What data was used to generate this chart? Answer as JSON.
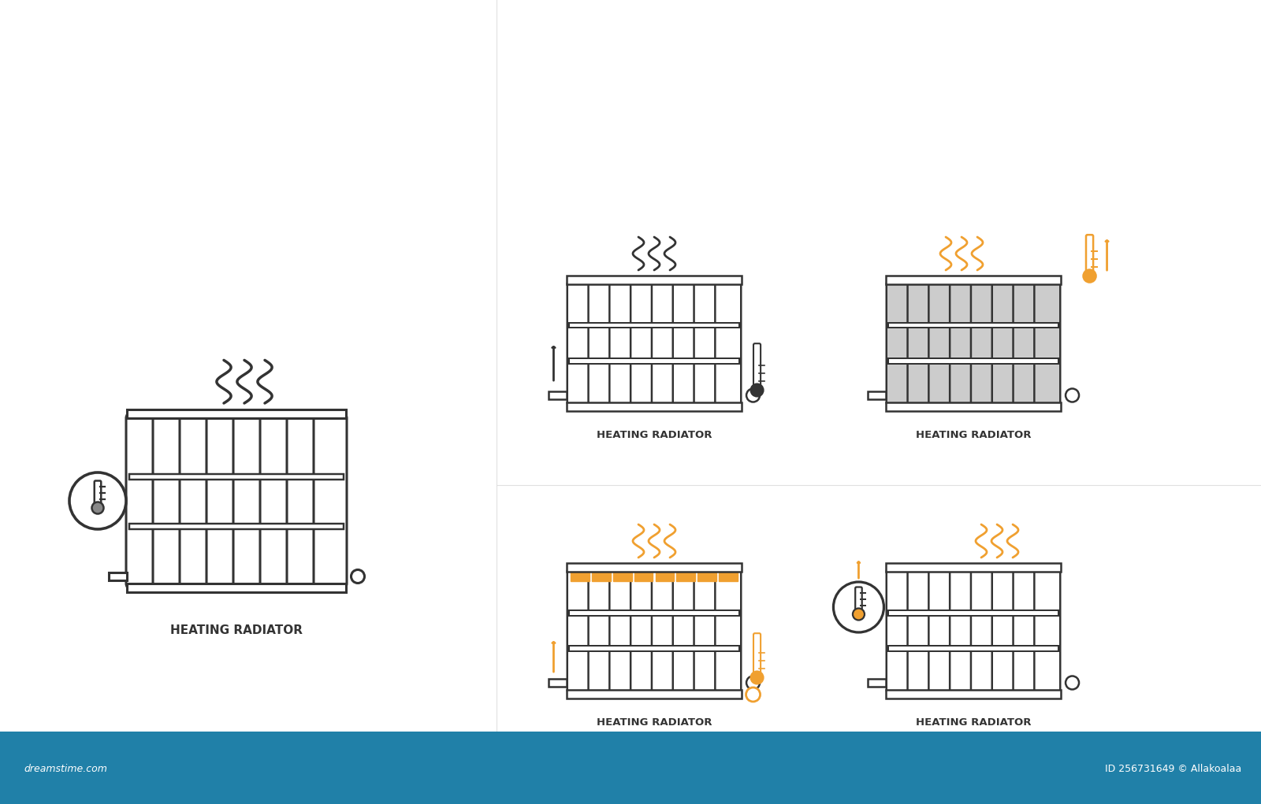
{
  "bg_color": "#ffffff",
  "footer_color": "#2080a8",
  "radiator_outline_color": "#333333",
  "radiator_fill_white": "#ffffff",
  "radiator_fill_gray": "#cccccc",
  "orange_color": "#f0a030",
  "dark_color": "#333333",
  "label_text": "HEATING RADIATOR",
  "dreamstime_text": "dreamstime.com",
  "id_text": "ID 256731649 © Allakoalaa",
  "footer_text_color": "#ffffff"
}
